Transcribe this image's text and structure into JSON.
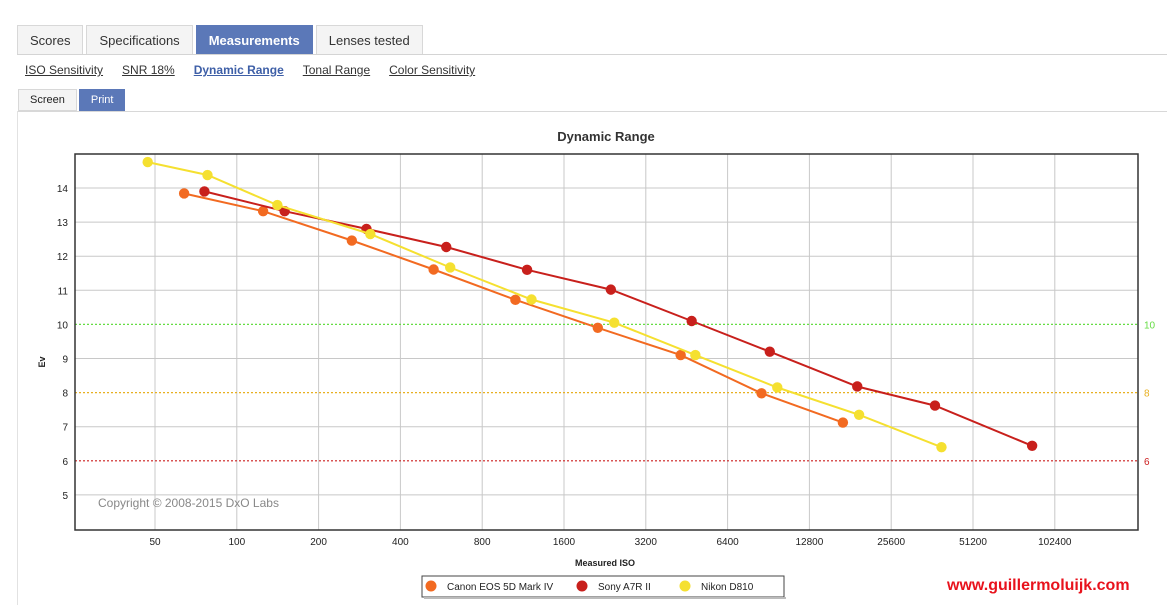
{
  "tabs": [
    {
      "label": "Scores"
    },
    {
      "label": "Specifications"
    },
    {
      "label": "Measurements"
    },
    {
      "label": "Lenses tested"
    }
  ],
  "subnav": [
    {
      "label": "ISO Sensitivity"
    },
    {
      "label": "SNR 18%"
    },
    {
      "label": "Dynamic Range"
    },
    {
      "label": "Tonal Range"
    },
    {
      "label": "Color Sensitivity"
    }
  ],
  "modes": [
    {
      "label": "Screen"
    },
    {
      "label": "Print"
    }
  ],
  "watermark": "www.guillermoluijk.com",
  "chart_data": {
    "type": "line",
    "title": "Dynamic Range",
    "xlabel": "Measured ISO",
    "ylabel": "Ev",
    "x_scale": "log2",
    "x_ticks": [
      "50",
      "100",
      "200",
      "400",
      "800",
      "1600",
      "3200",
      "6400",
      "12800",
      "25600",
      "51200",
      "102400"
    ],
    "y_ticks": [
      "5",
      "6",
      "7",
      "8",
      "9",
      "10",
      "11",
      "12",
      "13",
      "14"
    ],
    "ylim": [
      4,
      15
    ],
    "grid": true,
    "copyright": "Copyright © 2008-2015 DxO Labs",
    "reference_lines": [
      {
        "value": 10,
        "label": "10",
        "color": "#66dd44",
        "style": "dotted"
      },
      {
        "value": 8,
        "label": "8",
        "color": "#e8b020",
        "style": "dotted"
      },
      {
        "value": 6,
        "label": "6",
        "color": "#cc1f1f",
        "style": "dotted"
      }
    ],
    "legend_position": "bottom-center",
    "series": [
      {
        "name": "Canon EOS 5D Mark IV",
        "color": "#f26a21",
        "x": [
          64,
          125,
          265,
          530,
          1060,
          2130,
          4300,
          8530,
          17000
        ],
        "y": [
          13.84,
          13.32,
          12.46,
          11.61,
          10.72,
          9.9,
          9.1,
          7.98,
          7.12
        ]
      },
      {
        "name": "Sony A7R II",
        "color": "#c8201c",
        "x": [
          76,
          150,
          300,
          590,
          1170,
          2380,
          4720,
          9150,
          19200,
          37100,
          84500
        ],
        "y": [
          13.9,
          13.32,
          12.8,
          12.27,
          11.6,
          11.02,
          10.1,
          9.2,
          8.18,
          7.62,
          6.44
        ]
      },
      {
        "name": "Nikon D810",
        "color": "#f5e030",
        "x": [
          47,
          78,
          141,
          310,
          610,
          1215,
          2450,
          4870,
          9750,
          19500,
          39200
        ],
        "y": [
          14.76,
          14.38,
          13.5,
          12.65,
          11.67,
          10.73,
          10.05,
          9.1,
          8.15,
          7.35,
          6.4
        ]
      }
    ]
  }
}
